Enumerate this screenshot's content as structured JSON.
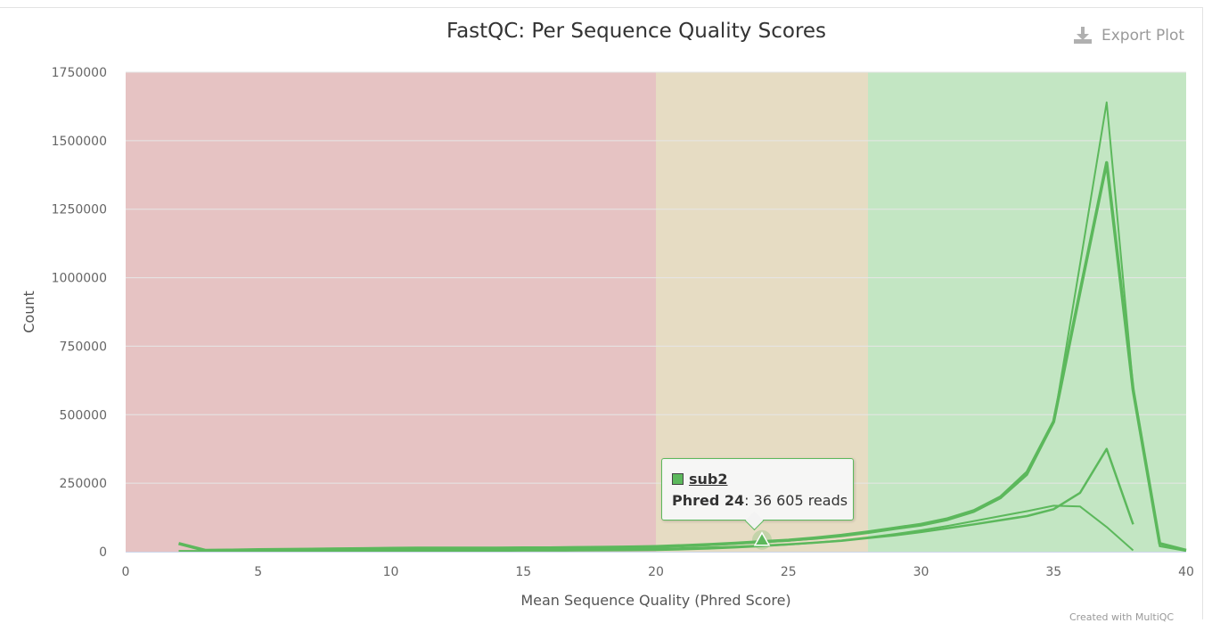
{
  "export_label": "Export Plot",
  "credit": "Created with MultiQC",
  "tooltip": {
    "sample": "sub2",
    "x_label": "Phred 24",
    "value_text": ": 36 605 reads"
  },
  "colors": {
    "line": "#5cb85c",
    "band_fail": "#e6c3c3",
    "band_warn": "#e6dcc3",
    "band_pass": "#c3e6c3",
    "grid": "#e6e6e6",
    "axis_text": "#666666"
  },
  "chart_data": {
    "type": "line",
    "title": "FastQC: Per Sequence Quality Scores",
    "xlabel": "Mean Sequence Quality (Phred Score)",
    "ylabel": "Count",
    "xlim": [
      0,
      40
    ],
    "ylim": [
      0,
      1750000
    ],
    "xticks": [
      0,
      5,
      10,
      15,
      20,
      25,
      30,
      35,
      40
    ],
    "yticks": [
      0,
      250000,
      500000,
      750000,
      1000000,
      1250000,
      1500000,
      1750000
    ],
    "bands": [
      {
        "from": 0,
        "to": 20,
        "status": "fail"
      },
      {
        "from": 20,
        "to": 28,
        "status": "warn"
      },
      {
        "from": 28,
        "to": 40,
        "status": "pass"
      }
    ],
    "highlight": {
      "x": 24,
      "y": 36605
    },
    "series": [
      {
        "x": [
          2,
          3,
          4,
          5,
          6,
          7,
          8,
          9,
          10,
          11,
          12,
          13,
          14,
          15,
          16,
          17,
          18,
          19,
          20,
          21,
          22,
          23,
          24,
          25,
          26,
          27,
          28,
          29,
          30,
          31,
          32,
          33,
          34,
          35,
          36,
          37,
          38,
          39,
          40
        ],
        "values": [
          30000,
          5000,
          6000,
          7000,
          8000,
          9000,
          10000,
          11000,
          12000,
          13000,
          13000,
          13000,
          13000,
          14000,
          14000,
          15000,
          16000,
          17000,
          19000,
          22000,
          26000,
          31000,
          36605,
          42000,
          50000,
          60000,
          72000,
          86000,
          100000,
          120000,
          150000,
          200000,
          290000,
          475000,
          950000,
          1420000,
          590000,
          30000,
          5000
        ]
      },
      {
        "x": [
          2,
          3,
          4,
          5,
          6,
          7,
          8,
          9,
          10,
          11,
          12,
          13,
          14,
          15,
          16,
          17,
          18,
          19,
          20,
          21,
          22,
          23,
          24,
          25,
          26,
          27,
          28,
          29,
          30,
          31,
          32,
          33,
          34,
          35,
          36,
          37,
          38,
          39,
          40
        ],
        "values": [
          28000,
          4000,
          5000,
          6000,
          7000,
          8000,
          9000,
          10000,
          11000,
          12000,
          12000,
          12000,
          12000,
          13000,
          13000,
          14000,
          15000,
          16000,
          18000,
          21000,
          24000,
          29000,
          34000,
          40000,
          47000,
          56000,
          68000,
          82000,
          95000,
          115000,
          145000,
          195000,
          280000,
          470000,
          1050000,
          1640000,
          600000,
          20000,
          3000
        ]
      },
      {
        "x": [
          2,
          3,
          4,
          5,
          6,
          7,
          8,
          9,
          10,
          11,
          12,
          13,
          14,
          15,
          16,
          17,
          18,
          19,
          20,
          21,
          22,
          23,
          24,
          25,
          26,
          27,
          28,
          29,
          30,
          31,
          32,
          33,
          34,
          35,
          36,
          37,
          38
        ],
        "values": [
          2000,
          2000,
          3000,
          3000,
          4000,
          4000,
          5000,
          5000,
          6000,
          6000,
          6000,
          6000,
          6000,
          7000,
          7000,
          7000,
          8000,
          9000,
          10000,
          12000,
          15000,
          18000,
          22000,
          27000,
          33000,
          40000,
          50000,
          60000,
          72000,
          86000,
          100000,
          115000,
          130000,
          155000,
          215000,
          375000,
          100000
        ]
      },
      {
        "x": [
          2,
          3,
          4,
          5,
          6,
          7,
          8,
          9,
          10,
          11,
          12,
          13,
          14,
          15,
          16,
          17,
          18,
          19,
          20,
          21,
          22,
          23,
          24,
          25,
          26,
          27,
          28,
          29,
          30,
          31,
          32,
          33,
          34,
          35,
          36,
          37,
          38
        ],
        "values": [
          1000,
          1000,
          1500,
          1500,
          2000,
          2000,
          2500,
          2500,
          3000,
          3000,
          3000,
          3000,
          3000,
          3500,
          3500,
          4000,
          4500,
          5000,
          6000,
          8000,
          11000,
          15000,
          20000,
          26000,
          33000,
          41000,
          52000,
          64000,
          78000,
          94000,
          112000,
          130000,
          148000,
          168000,
          165000,
          90000,
          5000
        ]
      }
    ]
  }
}
